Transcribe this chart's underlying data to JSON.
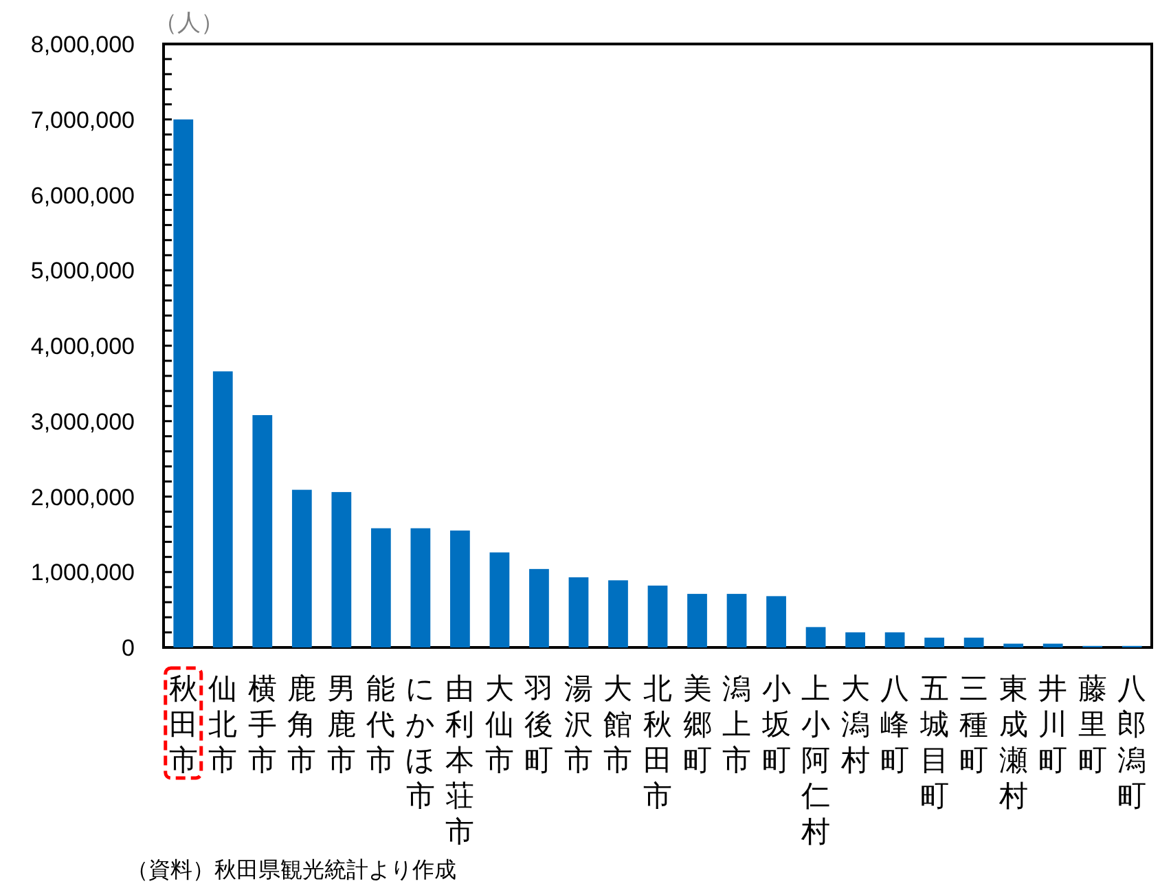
{
  "chart_data": {
    "type": "bar",
    "ylabel": "（人）",
    "categories": [
      "秋田市",
      "仙北市",
      "横手市",
      "鹿角市",
      "男鹿市",
      "能代市",
      "にかほ市",
      "由利本荘市",
      "大仙市",
      "羽後町",
      "湯沢市",
      "大館市",
      "北秋田市",
      "美郷町",
      "潟上市",
      "小坂町",
      "上小阿仁村",
      "大潟村",
      "八峰町",
      "五城目町",
      "三種町",
      "東成瀬村",
      "井川町",
      "藤里町",
      "八郎潟町"
    ],
    "values": [
      7000000,
      3660000,
      3080000,
      2090000,
      2060000,
      1580000,
      1580000,
      1550000,
      1260000,
      1040000,
      930000,
      890000,
      820000,
      710000,
      710000,
      680000,
      270000,
      200000,
      200000,
      130000,
      130000,
      50000,
      50000,
      20000,
      20000
    ],
    "color": "#0070c0",
    "ylim": [
      0,
      8000000
    ],
    "yticks": [
      {
        "value": 0,
        "label": "0"
      },
      {
        "value": 200000,
        "label": null
      },
      {
        "value": 400000,
        "label": null
      },
      {
        "value": 600000,
        "label": null
      },
      {
        "value": 800000,
        "label": null
      },
      {
        "value": 1000000,
        "label": "1,000,000"
      },
      {
        "value": 1200000,
        "label": null
      },
      {
        "value": 1400000,
        "label": null
      },
      {
        "value": 1600000,
        "label": null
      },
      {
        "value": 1800000,
        "label": null
      },
      {
        "value": 2000000,
        "label": "2,000,000"
      },
      {
        "value": 2200000,
        "label": null
      },
      {
        "value": 2400000,
        "label": null
      },
      {
        "value": 2600000,
        "label": null
      },
      {
        "value": 2800000,
        "label": null
      },
      {
        "value": 3000000,
        "label": "3,000,000"
      },
      {
        "value": 3200000,
        "label": null
      },
      {
        "value": 3400000,
        "label": null
      },
      {
        "value": 3600000,
        "label": null
      },
      {
        "value": 3800000,
        "label": null
      },
      {
        "value": 4000000,
        "label": "4,000,000"
      },
      {
        "value": 4200000,
        "label": null
      },
      {
        "value": 4400000,
        "label": null
      },
      {
        "value": 4600000,
        "label": null
      },
      {
        "value": 4800000,
        "label": null
      },
      {
        "value": 5000000,
        "label": "5,000,000"
      },
      {
        "value": 5200000,
        "label": null
      },
      {
        "value": 5400000,
        "label": null
      },
      {
        "value": 5600000,
        "label": null
      },
      {
        "value": 5800000,
        "label": null
      },
      {
        "value": 6000000,
        "label": "6,000,000"
      },
      {
        "value": 6200000,
        "label": null
      },
      {
        "value": 6400000,
        "label": null
      },
      {
        "value": 6600000,
        "label": null
      },
      {
        "value": 6800000,
        "label": null
      },
      {
        "value": 7000000,
        "label": "7,000,000"
      },
      {
        "value": 7200000,
        "label": null
      },
      {
        "value": 7400000,
        "label": null
      },
      {
        "value": 7600000,
        "label": null
      },
      {
        "value": 7800000,
        "label": null
      },
      {
        "value": 8000000,
        "label": "8,000,000"
      }
    ],
    "grid": false,
    "annotations": [
      "（資料）秋田県観光統計より作成"
    ]
  }
}
